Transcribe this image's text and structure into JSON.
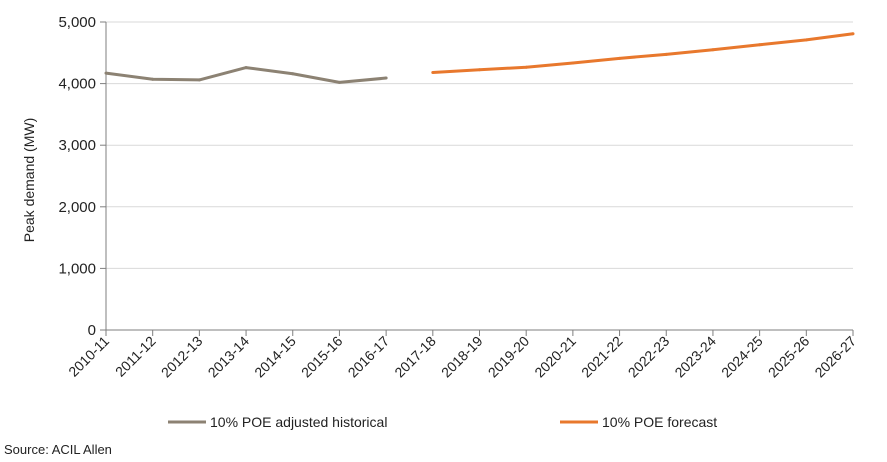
{
  "chart_data": {
    "type": "line",
    "categories": [
      "2010-11",
      "2011-12",
      "2012-13",
      "2013-14",
      "2014-15",
      "2015-16",
      "2016-17",
      "2017-18",
      "2018-19",
      "2019-20",
      "2020-21",
      "2021-22",
      "2022-23",
      "2023-24",
      "2024-25",
      "2025-26",
      "2026-27"
    ],
    "series": [
      {
        "name": "10% POE adjusted historical",
        "color": "#8c8273",
        "values": [
          4170,
          4070,
          4060,
          4260,
          4160,
          4020,
          4090,
          null,
          null,
          null,
          null,
          null,
          null,
          null,
          null,
          null,
          null
        ]
      },
      {
        "name": "10% POE forecast",
        "color": "#e8782d",
        "values": [
          null,
          null,
          null,
          null,
          null,
          null,
          null,
          4180,
          4225,
          4265,
          4335,
          4410,
          4475,
          4550,
          4630,
          4710,
          4810
        ]
      }
    ],
    "title": "",
    "xlabel": "",
    "ylabel": "Peak demand (MW)",
    "ylim": [
      0,
      5000
    ],
    "yticks": [
      "0",
      "1,000",
      "2,000",
      "3,000",
      "4,000",
      "5,000"
    ],
    "ytick_values": [
      0,
      1000,
      2000,
      3000,
      4000,
      5000
    ],
    "grid": "horizontal",
    "legend_position": "bottom"
  },
  "source": "Source: ACIL Allen"
}
